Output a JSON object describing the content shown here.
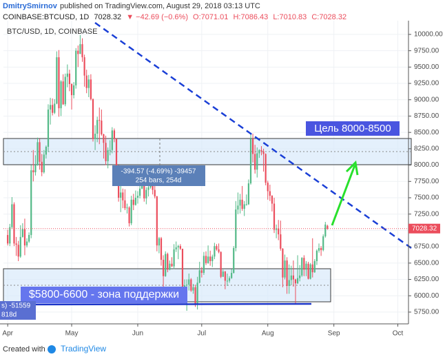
{
  "header": {
    "author": "DmitrySmirnov",
    "published": "published on TradingView.com, August 29, 2018 03:13 UTC",
    "symbol": "COINBASE:BTCUSD, 1D",
    "last": "7028.32",
    "change": "▼ −42.69 (−0.6%)",
    "o": "O:7071.01",
    "h": "H:7086.43",
    "l": "L:7010.83",
    "c": "C:7028.32"
  },
  "chart_data": {
    "type": "candlestick",
    "subtitle": "BTC/USD, 1D, COINBASE",
    "up_color": "#53b987",
    "down_color": "#eb4d5c",
    "grid": true,
    "xlim": [
      -2,
      188
    ],
    "xticks": [
      {
        "value": 0,
        "label": "Apr"
      },
      {
        "value": 30,
        "label": "May"
      },
      {
        "value": 61,
        "label": "Jun"
      },
      {
        "value": 91,
        "label": "Jul"
      },
      {
        "value": 122,
        "label": "Aug"
      },
      {
        "value": 153,
        "label": "Sep"
      },
      {
        "value": 183,
        "label": "Oct"
      }
    ],
    "ylim": [
      5570,
      10210
    ],
    "yticks": [
      {
        "value": 5750,
        "label": "5750.00"
      },
      {
        "value": 6000,
        "label": "6000.00"
      },
      {
        "value": 6250,
        "label": "6250.00"
      },
      {
        "value": 6500,
        "label": "6500.00"
      },
      {
        "value": 6750,
        "label": "6750.00"
      },
      {
        "value": 7000,
        "label": "7000.00"
      },
      {
        "value": 7250,
        "label": "7250.00"
      },
      {
        "value": 7500,
        "label": "7500.00"
      },
      {
        "value": 7750,
        "label": "7750.00"
      },
      {
        "value": 8000,
        "label": "8000.00"
      },
      {
        "value": 8250,
        "label": "8250.00"
      },
      {
        "value": 8500,
        "label": "8500.00"
      },
      {
        "value": 8750,
        "label": "8750.00"
      },
      {
        "value": 9000,
        "label": "9000.00"
      },
      {
        "value": 9250,
        "label": "9250.00"
      },
      {
        "value": 9500,
        "label": "9500.00"
      },
      {
        "value": 9750,
        "label": "9750.00"
      },
      {
        "value": 10000,
        "label": "10000.00"
      }
    ],
    "candles": [
      [
        6930,
        7010,
        6770,
        6800
      ],
      [
        6800,
        7100,
        6760,
        7050
      ],
      [
        7050,
        7510,
        7020,
        7400
      ],
      [
        7400,
        7430,
        6760,
        6800
      ],
      [
        6800,
        6900,
        6610,
        6780
      ],
      [
        6780,
        6840,
        6530,
        6600
      ],
      [
        6600,
        7080,
        6580,
        6900
      ],
      [
        6900,
        7110,
        6890,
        7020
      ],
      [
        7020,
        7180,
        6620,
        6770
      ],
      [
        6770,
        6880,
        6740,
        6830
      ],
      [
        6830,
        6970,
        6810,
        6930
      ],
      [
        6930,
        8000,
        6880,
        7920
      ],
      [
        7920,
        8230,
        7750,
        7890
      ],
      [
        7890,
        8150,
        7840,
        8000
      ],
      [
        8000,
        8420,
        7990,
        8350
      ],
      [
        8350,
        8400,
        7930,
        8050
      ],
      [
        8050,
        8170,
        7830,
        7890
      ],
      [
        7890,
        8230,
        7870,
        8160
      ],
      [
        8160,
        8300,
        8100,
        8280
      ],
      [
        8280,
        8930,
        8200,
        8850
      ],
      [
        8850,
        9030,
        8620,
        8920
      ],
      [
        8920,
        9020,
        8760,
        8800
      ],
      [
        8800,
        9010,
        8780,
        8940
      ],
      [
        8940,
        9740,
        8930,
        9650
      ],
      [
        9650,
        9760,
        8740,
        8870
      ],
      [
        8870,
        9300,
        8750,
        9280
      ],
      [
        9280,
        9390,
        8920,
        8930
      ],
      [
        8930,
        9400,
        8900,
        9350
      ],
      [
        9350,
        9540,
        9190,
        9400
      ],
      [
        9400,
        9460,
        9130,
        9240
      ],
      [
        9240,
        9250,
        8850,
        9070
      ],
      [
        9070,
        9270,
        9020,
        9220
      ],
      [
        9220,
        9790,
        9170,
        9750
      ],
      [
        9750,
        9830,
        9500,
        9700
      ],
      [
        9700,
        9990,
        9700,
        9850
      ],
      [
        9850,
        9940,
        9580,
        9650
      ],
      [
        9650,
        9690,
        9200,
        9370
      ],
      [
        9370,
        9460,
        9100,
        9180
      ],
      [
        9180,
        9380,
        9040,
        9310
      ],
      [
        9310,
        9390,
        8990,
        9010
      ],
      [
        9010,
        9020,
        8360,
        8400
      ],
      [
        8400,
        8610,
        8230,
        8480
      ],
      [
        8480,
        8740,
        8350,
        8690
      ],
      [
        8690,
        8880,
        8320,
        8680
      ],
      [
        8680,
        8850,
        8450,
        8470
      ],
      [
        8470,
        8480,
        8100,
        8340
      ],
      [
        8340,
        8450,
        8000,
        8060
      ],
      [
        8060,
        8270,
        7950,
        8230
      ],
      [
        8230,
        8380,
        8150,
        8230
      ],
      [
        8230,
        8580,
        8180,
        8530
      ],
      [
        8530,
        8560,
        8350,
        8400
      ],
      [
        8400,
        8410,
        7950,
        7990
      ],
      [
        7990,
        8000,
        7440,
        7500
      ],
      [
        7500,
        7720,
        7280,
        7580
      ],
      [
        7580,
        7640,
        7340,
        7460
      ],
      [
        7460,
        7630,
        7310,
        7340
      ],
      [
        7340,
        7410,
        7260,
        7350
      ],
      [
        7350,
        7370,
        7060,
        7110
      ],
      [
        7110,
        7530,
        7080,
        7470
      ],
      [
        7470,
        7560,
        7310,
        7390
      ],
      [
        7390,
        7610,
        7380,
        7500
      ],
      [
        7500,
        7600,
        7410,
        7530
      ],
      [
        7530,
        7690,
        7490,
        7640
      ],
      [
        7640,
        7760,
        7630,
        7720
      ],
      [
        7720,
        7760,
        7440,
        7490
      ],
      [
        7490,
        7660,
        7400,
        7620
      ],
      [
        7620,
        7700,
        7520,
        7660
      ],
      [
        7660,
        7750,
        7640,
        7690
      ],
      [
        7690,
        7700,
        7550,
        7620
      ],
      [
        7620,
        7680,
        7490,
        7520
      ],
      [
        7520,
        7530,
        6680,
        6770
      ],
      [
        6770,
        6900,
        6650,
        6880
      ],
      [
        6880,
        6900,
        6460,
        6550
      ],
      [
        6550,
        6620,
        6120,
        6300
      ],
      [
        6300,
        6680,
        6290,
        6640
      ],
      [
        6640,
        6660,
        6360,
        6400
      ],
      [
        6400,
        6540,
        6390,
        6490
      ],
      [
        6490,
        6590,
        6440,
        6450
      ],
      [
        6450,
        6790,
        6410,
        6710
      ],
      [
        6710,
        6830,
        6670,
        6740
      ],
      [
        6740,
        6780,
        6560,
        6760
      ],
      [
        6760,
        6790,
        6700,
        6720
      ],
      [
        6720,
        6720,
        5980,
        6050
      ],
      [
        6050,
        6250,
        6040,
        6160
      ],
      [
        6160,
        6250,
        5770,
        6170
      ],
      [
        6170,
        6340,
        6080,
        6250
      ],
      [
        6250,
        6270,
        6060,
        6080
      ],
      [
        6080,
        6180,
        6030,
        6130
      ],
      [
        6130,
        6170,
        5830,
        5870
      ],
      [
        5870,
        6290,
        5790,
        6200
      ],
      [
        6200,
        6520,
        6190,
        6390
      ],
      [
        6390,
        6440,
        6280,
        6350
      ],
      [
        6350,
        6670,
        6320,
        6610
      ],
      [
        6610,
        6680,
        6470,
        6500
      ],
      [
        6500,
        6770,
        6490,
        6600
      ],
      [
        6600,
        6690,
        6460,
        6530
      ],
      [
        6530,
        6630,
        6440,
        6600
      ],
      [
        6600,
        6810,
        6560,
        6760
      ],
      [
        6760,
        6790,
        6690,
        6710
      ],
      [
        6710,
        6800,
        6650,
        6670
      ],
      [
        6670,
        6680,
        6270,
        6290
      ],
      [
        6290,
        6400,
        6290,
        6370
      ],
      [
        6370,
        6380,
        6100,
        6230
      ],
      [
        6230,
        6340,
        6150,
        6230
      ],
      [
        6230,
        6300,
        6200,
        6270
      ],
      [
        6270,
        6410,
        6260,
        6350
      ],
      [
        6350,
        6760,
        6340,
        6730
      ],
      [
        6730,
        7450,
        6680,
        7320
      ],
      [
        7320,
        7580,
        7250,
        7380
      ],
      [
        7380,
        7560,
        7260,
        7470
      ],
      [
        7470,
        7680,
        7300,
        7330
      ],
      [
        7330,
        7450,
        7220,
        7400
      ],
      [
        7400,
        7550,
        7380,
        7400
      ],
      [
        7400,
        7780,
        7390,
        7720
      ],
      [
        7720,
        8490,
        7700,
        8400
      ],
      [
        8400,
        8480,
        8040,
        8170
      ],
      [
        8170,
        8310,
        7870,
        7930
      ],
      [
        7930,
        8270,
        7810,
        8180
      ],
      [
        8180,
        8240,
        8110,
        8230
      ],
      [
        8230,
        8290,
        8150,
        8210
      ],
      [
        8210,
        8250,
        7900,
        8170
      ],
      [
        8170,
        8180,
        7690,
        7730
      ],
      [
        7730,
        7760,
        7470,
        7600
      ],
      [
        7600,
        7700,
        7450,
        7530
      ],
      [
        7530,
        7540,
        7290,
        7410
      ],
      [
        7410,
        7500,
        6960,
        7010
      ],
      [
        7010,
        7090,
        6880,
        7030
      ],
      [
        7030,
        7160,
        6850,
        6940
      ],
      [
        6940,
        7150,
        6690,
        6720
      ],
      [
        6720,
        6730,
        6130,
        6280
      ],
      [
        6280,
        6630,
        6250,
        6540
      ],
      [
        6540,
        6590,
        6030,
        6150
      ],
      [
        6150,
        6480,
        6030,
        6240
      ],
      [
        6240,
        6460,
        6160,
        6310
      ],
      [
        6310,
        6540,
        6140,
        6250
      ],
      [
        6250,
        6260,
        5880,
        6190
      ],
      [
        6190,
        6620,
        6180,
        6270
      ],
      [
        6270,
        6470,
        6220,
        6310
      ],
      [
        6310,
        6590,
        6290,
        6580
      ],
      [
        6580,
        6620,
        6300,
        6400
      ],
      [
        6400,
        6530,
        6300,
        6490
      ],
      [
        6490,
        6520,
        6250,
        6260
      ],
      [
        6260,
        6500,
        6250,
        6480
      ],
      [
        6480,
        6880,
        6280,
        6360
      ],
      [
        6360,
        6560,
        6350,
        6530
      ],
      [
        6530,
        6710,
        6470,
        6690
      ],
      [
        6690,
        6800,
        6660,
        6730
      ],
      [
        6730,
        6760,
        6610,
        6700
      ],
      [
        6700,
        6940,
        6680,
        6910
      ],
      [
        6910,
        7130,
        6890,
        7090
      ],
      [
        7071.01,
        7086.43,
        7010.83,
        7028.32
      ]
    ],
    "annotations": {
      "target": "Цель 8000-8500",
      "support": "$5800-6600 - зона поддержки",
      "measure_line1": "-394.57 (-4.69%) -39457",
      "measure_line2": "254 bars, 254d",
      "partial_line1": "s) -51559",
      "partial_line2": "818d"
    }
  },
  "footer": {
    "created": "Created with",
    "brand": "TradingView"
  }
}
